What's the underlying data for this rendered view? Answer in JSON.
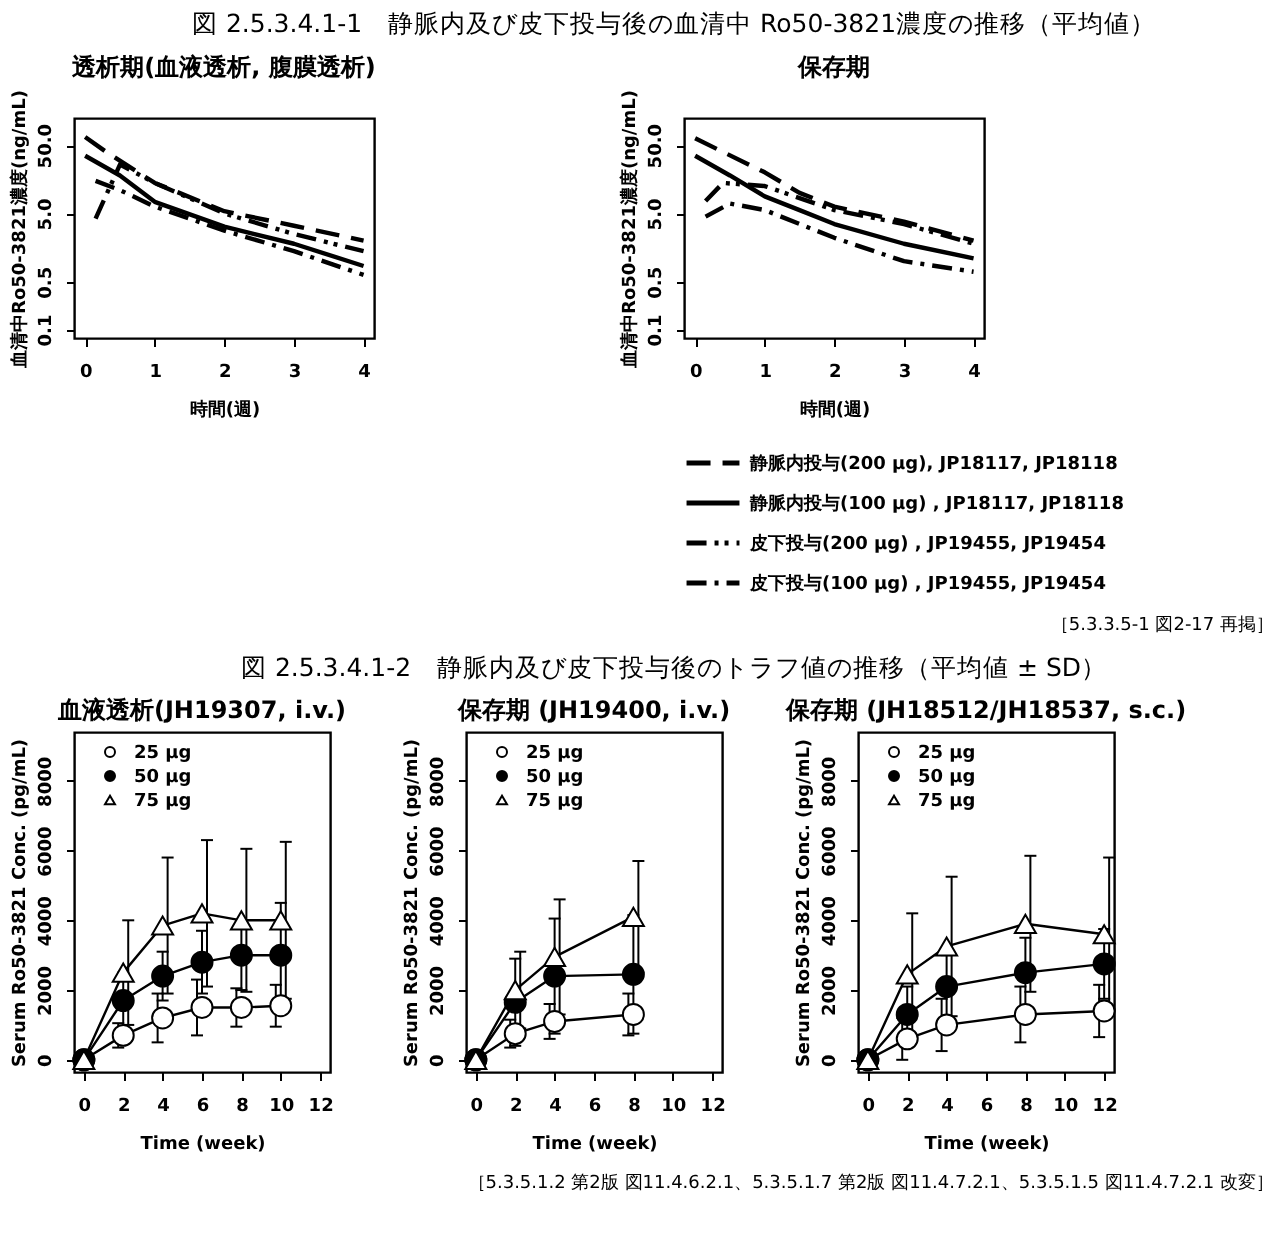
{
  "chart_data": [
    {
      "type": "line",
      "title": "図 2.5.3.4.1-1　静脈内及び皮下投与後の血清中 Ro50-3821濃度の推移（平均値）",
      "subtitle": "透析期(血液透析, 腹膜透析)",
      "xlabel": "時間(週)",
      "ylabel": "血清中Ro50-3821濃度(ng/mL)",
      "log": "y",
      "xlim": [
        -0.16,
        4.15
      ],
      "xticks": [
        0,
        1,
        2,
        3,
        4
      ],
      "ylim": [
        0.075,
        125
      ],
      "yticks": [
        {
          "value": 0.1,
          "label": "0.1"
        },
        {
          "value": 0.5,
          "label": "0.5"
        },
        {
          "value": 5,
          "label": "5.0"
        },
        {
          "value": 50,
          "label": "50.0"
        }
      ],
      "grid": false,
      "legend": "bottom",
      "marker": "none",
      "series": [
        {
          "name": "静脈内投与(200 μg), JP18117, JP18118",
          "color": "#000000",
          "line_style": "dashed",
          "x": [
            0,
            0.3,
            1,
            2,
            3,
            4
          ],
          "values": [
            66,
            40,
            14,
            5.4,
            3.3,
            2.0
          ]
        },
        {
          "name": "静脈内投与(100 μg) , JP18117, JP18118",
          "color": "#000000",
          "line_style": "solid",
          "x": [
            0,
            0.5,
            1,
            2,
            3,
            4
          ],
          "values": [
            35,
            18,
            7.4,
            3.2,
            1.8,
            0.85
          ]
        },
        {
          "name": "皮下投与(200 μg) , JP19455, JP19454",
          "color": "#000000",
          "line_style": "dashdotdot",
          "x": [
            0.15,
            0.5,
            1,
            2,
            3,
            4
          ],
          "values": [
            4.2,
            26,
            14,
            5,
            2.5,
            1.4
          ]
        },
        {
          "name": "皮下投与(100 μg) , JP19455, JP19454",
          "color": "#000000",
          "line_style": "dashdot",
          "x": [
            0.15,
            0.5,
            1,
            2,
            3,
            4
          ],
          "values": [
            15,
            11,
            6.3,
            2.8,
            1.4,
            0.63
          ]
        }
      ]
    },
    {
      "type": "line",
      "subtitle": "保存期",
      "xlabel": "時間(週)",
      "ylabel": "血清中Ro50-3821濃度(ng/mL)",
      "log": "y",
      "xlim": [
        -0.16,
        4.15
      ],
      "xticks": [
        0,
        1,
        2,
        3,
        4
      ],
      "ylim": [
        0.075,
        125
      ],
      "yticks": [
        {
          "value": 0.1,
          "label": "0.1"
        },
        {
          "value": 0.5,
          "label": "0.5"
        },
        {
          "value": 5,
          "label": "5.0"
        },
        {
          "value": 50,
          "label": "50.0"
        }
      ],
      "grid": false,
      "legend": "bottom",
      "marker": "none",
      "annotations": [
        "［5.3.3.5-1 図2-17 再掲］"
      ],
      "series": [
        {
          "name": "静脈内投与(200 μg), JP18117, JP18118",
          "color": "#000000",
          "line_style": "dashed",
          "x": [
            0,
            1,
            1.5,
            2,
            3,
            4
          ],
          "values": [
            63,
            20,
            10,
            6.3,
            3.8,
            2.0
          ]
        },
        {
          "name": "静脈内投与(100 μg) , JP18117, JP18118",
          "color": "#000000",
          "line_style": "solid",
          "x": [
            0,
            0.5,
            1,
            1.5,
            2,
            3,
            4
          ],
          "values": [
            35,
            18,
            8.9,
            5.6,
            3.5,
            1.8,
            1.1
          ]
        },
        {
          "name": "皮下投与(200 μg) , JP19455, JP19454",
          "color": "#000000",
          "line_style": "dashdotdot",
          "x": [
            0.15,
            0.4,
            1,
            2,
            3,
            4
          ],
          "values": [
            7.6,
            14,
            12.6,
            5.6,
            3.5,
            1.8
          ]
        },
        {
          "name": "皮下投与(100 μg) , JP19455, JP19454",
          "color": "#000000",
          "line_style": "dashdot",
          "x": [
            0.15,
            0.5,
            1,
            2,
            3,
            4
          ],
          "values": [
            4.5,
            7,
            5.6,
            2.2,
            1.0,
            0.7
          ]
        }
      ]
    },
    {
      "type": "line",
      "title": "図 2.5.3.4.1-2　静脈内及び皮下投与後のトラフ値の推移（平均値 ± SD）",
      "subtitle": "血液透析(JH19307, i.v.)",
      "xlabel": "Time (week)",
      "ylabel": "Serum Ro50-3821 Conc. (pg/mL)",
      "xlim": [
        -0.5,
        12.5
      ],
      "xticks": [
        0,
        2,
        4,
        6,
        8,
        10,
        12
      ],
      "ylim": [
        -350,
        9400
      ],
      "yticks": [
        0,
        2000,
        4000,
        6000,
        8000
      ],
      "grid": false,
      "legend": "top left",
      "line_style": "solid",
      "series": [
        {
          "name": "25 μg",
          "color": "#000000",
          "marker": "circle",
          "x": [
            0,
            2,
            4,
            6,
            8,
            10
          ],
          "values": [
            0,
            700,
            1200,
            1500,
            1500,
            1550
          ],
          "errors": [
            null,
            350,
            700,
            800,
            550,
            600
          ]
        },
        {
          "name": "50 μg",
          "color": "#000000",
          "marker": "circle",
          "x": [
            0,
            2,
            4,
            6,
            8,
            10
          ],
          "values": [
            0,
            1700,
            2400,
            2800,
            3000,
            3000
          ],
          "errors": [
            null,
            800,
            700,
            900,
            1000,
            1500
          ]
        },
        {
          "name": "75 μg",
          "color": "#000000",
          "marker": "triangle",
          "x": [
            0,
            2,
            4,
            6,
            8,
            10
          ],
          "values": [
            0,
            2500,
            3850,
            4200,
            4000,
            4000
          ],
          "errors": [
            null,
            1500,
            1950,
            2100,
            2050,
            2250
          ]
        }
      ]
    },
    {
      "type": "line",
      "subtitle": "保存期 (JH19400, i.v.)",
      "xlabel": "Time (week)",
      "ylabel": "Serum Ro50-3821 Conc. (pg/mL)",
      "xlim": [
        -0.5,
        12.5
      ],
      "xticks": [
        0,
        2,
        4,
        6,
        8,
        10,
        12
      ],
      "ylim": [
        -350,
        9400
      ],
      "yticks": [
        0,
        2000,
        4000,
        6000,
        8000
      ],
      "grid": false,
      "legend": "top left",
      "line_style": "solid",
      "series": [
        {
          "name": "25 μg",
          "color": "#000000",
          "marker": "circle",
          "x": [
            0,
            2,
            4,
            8
          ],
          "values": [
            0,
            750,
            1100,
            1300
          ],
          "errors": [
            null,
            400,
            500,
            600
          ]
        },
        {
          "name": "50 μg",
          "color": "#000000",
          "marker": "circle",
          "x": [
            0,
            2,
            4,
            8
          ],
          "values": [
            0,
            1650,
            2400,
            2450
          ],
          "errors": [
            null,
            1250,
            1650,
            1700
          ]
        },
        {
          "name": "75 μg",
          "color": "#000000",
          "marker": "triangle",
          "x": [
            0,
            2,
            4,
            8
          ],
          "values": [
            0,
            2000,
            2950,
            4100
          ],
          "errors": [
            null,
            1100,
            1650,
            1600
          ]
        }
      ]
    },
    {
      "type": "line",
      "subtitle": "保存期 (JH18512/JH18537, s.c.)",
      "xlabel": "Time (week)",
      "ylabel": "Serum Ro50-3821 Conc. (pg/mL)",
      "xlim": [
        -0.5,
        12.5
      ],
      "xticks": [
        0,
        2,
        4,
        6,
        8,
        10,
        12
      ],
      "ylim": [
        -350,
        9400
      ],
      "yticks": [
        0,
        2000,
        4000,
        6000,
        8000
      ],
      "grid": false,
      "legend": "top left",
      "line_style": "solid",
      "annotations": [
        "［5.3.5.1.2 第2版 図11.4.6.2.1、5.3.5.1.7 第2版 図11.4.7.2.1、5.3.5.1.5 図11.4.7.2.1 改変］"
      ],
      "series": [
        {
          "name": "25 μg",
          "color": "#000000",
          "marker": "circle",
          "x": [
            0,
            2,
            4,
            8,
            12
          ],
          "values": [
            0,
            600,
            1000,
            1300,
            1400
          ],
          "errors": [
            null,
            600,
            750,
            800,
            750
          ]
        },
        {
          "name": "50 μg",
          "color": "#000000",
          "marker": "circle",
          "x": [
            0,
            2,
            4,
            8,
            12
          ],
          "values": [
            0,
            1300,
            2100,
            2500,
            2750
          ],
          "errors": [
            null,
            800,
            900,
            1000,
            1000
          ]
        },
        {
          "name": "75 μg",
          "color": "#000000",
          "marker": "triangle",
          "x": [
            0,
            2,
            4,
            8,
            12
          ],
          "values": [
            0,
            2450,
            3250,
            3900,
            3600
          ],
          "errors": [
            null,
            1750,
            2000,
            1950,
            2200
          ]
        }
      ]
    }
  ]
}
